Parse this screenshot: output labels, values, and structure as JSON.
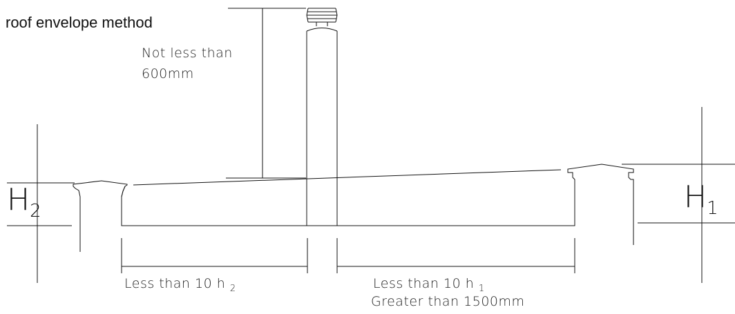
{
  "title": "roof envelope method",
  "labels": {
    "chimney_height_line1": "Not less than",
    "chimney_height_line2": "600mm",
    "left_distance": "Less than 10 h",
    "left_distance_sub": "2",
    "right_distance": "Less than 10 h",
    "right_distance_sub": "1",
    "right_min_distance": "Greater than 1500mm",
    "h2": "H",
    "h2_sub": "2",
    "h1": "H",
    "h1_sub": "1"
  },
  "colors": {
    "line": "#111111",
    "background": "#ffffff"
  }
}
